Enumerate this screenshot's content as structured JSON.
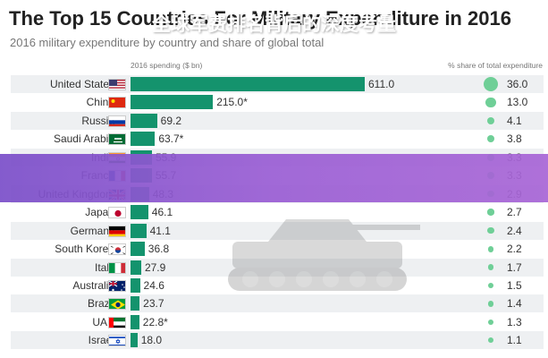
{
  "header": {
    "title": "The Top 15 Countries For Military Expenditure in 2016",
    "subtitle": "2016 military expenditure by country and share of global total",
    "col_spend": "2016 spending ($ bn)",
    "col_share": "% share of total expenditure"
  },
  "banner": {
    "text": "全球军费排名背后的深度考量"
  },
  "colors": {
    "bar": "#14936d",
    "share_dot": "#6fcf97",
    "banner_start": "#7b4fc9",
    "banner_end": "#a866d6"
  },
  "chart_data": {
    "type": "bar",
    "orientation": "horizontal",
    "categories": [
      "United States",
      "China",
      "Russia",
      "Saudi Arabia",
      "India",
      "France",
      "United Kingdom",
      "Japan",
      "Germany",
      "South Korea",
      "Italy",
      "Australia",
      "Brazil",
      "UAE",
      "Israel"
    ],
    "series": [
      {
        "name": "2016 spending ($ bn)",
        "values": [
          611.0,
          215.0,
          69.2,
          63.7,
          55.9,
          55.7,
          48.3,
          46.1,
          41.1,
          36.8,
          27.9,
          24.6,
          23.7,
          22.8,
          18.0
        ],
        "labels": [
          "611.0",
          "215.0*",
          "69.2",
          "63.7*",
          "55.9",
          "55.7",
          "48.3",
          "46.1",
          "41.1",
          "36.8",
          "27.9",
          "24.6",
          "23.7",
          "22.8*",
          "18.0"
        ]
      },
      {
        "name": "% share of total expenditure",
        "values": [
          36.0,
          13.0,
          4.1,
          3.8,
          3.3,
          3.3,
          2.9,
          2.7,
          2.4,
          2.2,
          1.7,
          1.5,
          1.4,
          1.3,
          1.1
        ],
        "labels": [
          "36.0",
          "13.0",
          "4.1",
          "3.8",
          "3.3",
          "3.3",
          "2.9",
          "2.7",
          "2.4",
          "2.2",
          "1.7",
          "1.5",
          "1.4",
          "1.3",
          "1.1"
        ]
      }
    ],
    "flags": [
      "us",
      "cn",
      "ru",
      "sa",
      "in",
      "fr",
      "gb",
      "jp",
      "de",
      "kr",
      "it",
      "au",
      "br",
      "ae",
      "il"
    ],
    "xlim": [
      0,
      611.0
    ]
  }
}
